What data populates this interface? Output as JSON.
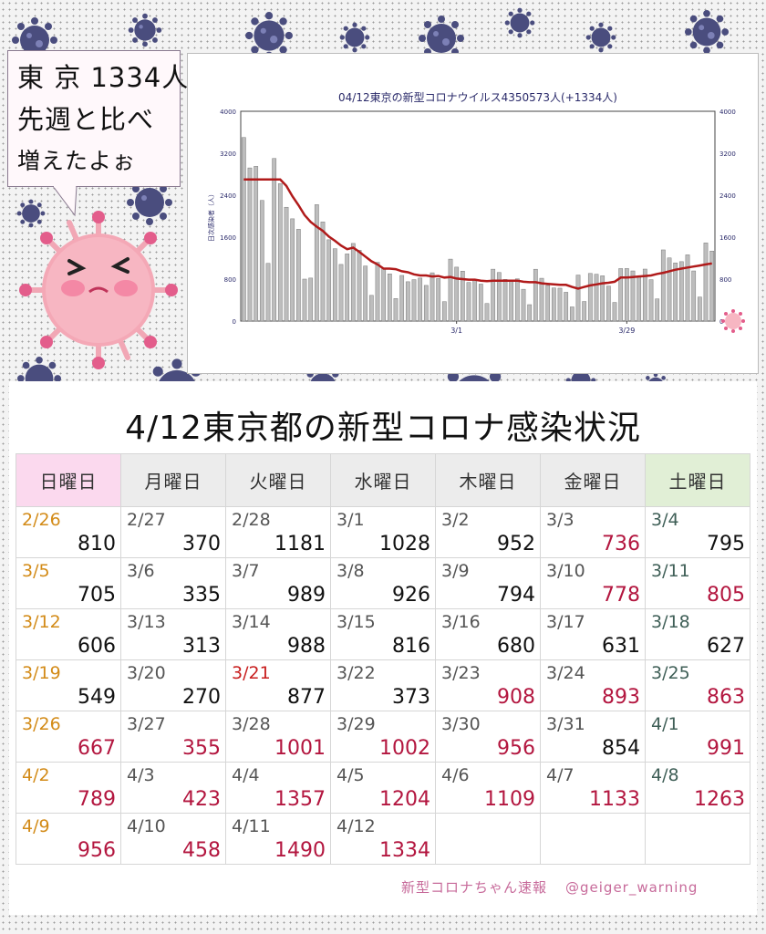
{
  "bubble": {
    "line1": "東 京 1334人",
    "line2": "先週と比べ",
    "line3": "増えたよぉ"
  },
  "table": {
    "title": "4/12東京都の新型コロナ感染状況",
    "headers": [
      "日曜日",
      "月曜日",
      "火曜日",
      "水曜日",
      "木曜日",
      "金曜日",
      "土曜日"
    ],
    "rows": [
      [
        {
          "date": "2/26",
          "value": "810",
          "red": false
        },
        {
          "date": "2/27",
          "value": "370",
          "red": false
        },
        {
          "date": "2/28",
          "value": "1181",
          "red": false
        },
        {
          "date": "3/1",
          "value": "1028",
          "red": false
        },
        {
          "date": "3/2",
          "value": "952",
          "red": false
        },
        {
          "date": "3/3",
          "value": "736",
          "red": true
        },
        {
          "date": "3/4",
          "value": "795",
          "red": false
        }
      ],
      [
        {
          "date": "3/5",
          "value": "705",
          "red": false
        },
        {
          "date": "3/6",
          "value": "335",
          "red": false
        },
        {
          "date": "3/7",
          "value": "989",
          "red": false
        },
        {
          "date": "3/8",
          "value": "926",
          "red": false
        },
        {
          "date": "3/9",
          "value": "794",
          "red": false
        },
        {
          "date": "3/10",
          "value": "778",
          "red": true
        },
        {
          "date": "3/11",
          "value": "805",
          "red": true
        }
      ],
      [
        {
          "date": "3/12",
          "value": "606",
          "red": false
        },
        {
          "date": "3/13",
          "value": "313",
          "red": false
        },
        {
          "date": "3/14",
          "value": "988",
          "red": false
        },
        {
          "date": "3/15",
          "value": "816",
          "red": false
        },
        {
          "date": "3/16",
          "value": "680",
          "red": false
        },
        {
          "date": "3/17",
          "value": "631",
          "red": false
        },
        {
          "date": "3/18",
          "value": "627",
          "red": false
        }
      ],
      [
        {
          "date": "3/19",
          "value": "549",
          "red": false
        },
        {
          "date": "3/20",
          "value": "270",
          "red": false
        },
        {
          "date": "3/21",
          "value": "877",
          "red": false,
          "holiday": true
        },
        {
          "date": "3/22",
          "value": "373",
          "red": false
        },
        {
          "date": "3/23",
          "value": "908",
          "red": true
        },
        {
          "date": "3/24",
          "value": "893",
          "red": true
        },
        {
          "date": "3/25",
          "value": "863",
          "red": true
        }
      ],
      [
        {
          "date": "3/26",
          "value": "667",
          "red": true
        },
        {
          "date": "3/27",
          "value": "355",
          "red": true
        },
        {
          "date": "3/28",
          "value": "1001",
          "red": true
        },
        {
          "date": "3/29",
          "value": "1002",
          "red": true
        },
        {
          "date": "3/30",
          "value": "956",
          "red": true
        },
        {
          "date": "3/31",
          "value": "854",
          "red": false
        },
        {
          "date": "4/1",
          "value": "991",
          "red": true
        }
      ],
      [
        {
          "date": "4/2",
          "value": "789",
          "red": true
        },
        {
          "date": "4/3",
          "value": "423",
          "red": true
        },
        {
          "date": "4/4",
          "value": "1357",
          "red": true
        },
        {
          "date": "4/5",
          "value": "1204",
          "red": true
        },
        {
          "date": "4/6",
          "value": "1109",
          "red": true
        },
        {
          "date": "4/7",
          "value": "1133",
          "red": true
        },
        {
          "date": "4/8",
          "value": "1263",
          "red": true
        }
      ],
      [
        {
          "date": "4/9",
          "value": "956",
          "red": true
        },
        {
          "date": "4/10",
          "value": "458",
          "red": true
        },
        {
          "date": "4/11",
          "value": "1490",
          "red": true
        },
        {
          "date": "4/12",
          "value": "1334",
          "red": true
        },
        {
          "date": "",
          "value": "",
          "red": false
        },
        {
          "date": "",
          "value": "",
          "red": false
        },
        {
          "date": "",
          "value": "",
          "red": false
        }
      ]
    ]
  },
  "credit": {
    "name": "新型コロナちゃん速報",
    "handle": "@geiger_warning"
  },
  "colors": {
    "bar": "#bdbdbd",
    "line": "#b01a1a",
    "axis_text": "#2a2a6a",
    "virus_navy": "#4a4d7e",
    "virus_pink": "#f1a7b5",
    "red_value": "#b3163f"
  },
  "chart_data": {
    "type": "bar",
    "title": "04/12東京の新型コロナウイルス4350573人(+1334人)",
    "ylabel": "日次感染者（人）",
    "ylim": [
      0,
      4000
    ],
    "yticks": [
      0,
      800,
      1600,
      2400,
      3200,
      4000
    ],
    "xticks": [
      {
        "index": 35,
        "label": "3/1"
      },
      {
        "index": 63,
        "label": "3/29"
      }
    ],
    "grid": false,
    "legend": "none",
    "line_series": "7-day average",
    "x": [
      "1/25",
      "1/26",
      "1/27",
      "1/28",
      "1/29",
      "1/30",
      "1/31",
      "2/1",
      "2/2",
      "2/3",
      "2/4",
      "2/5",
      "2/6",
      "2/7",
      "2/8",
      "2/9",
      "2/10",
      "2/11",
      "2/12",
      "2/13",
      "2/14",
      "2/15",
      "2/16",
      "2/17",
      "2/18",
      "2/19",
      "2/20",
      "2/21",
      "2/22",
      "2/23",
      "2/24",
      "2/25",
      "2/26",
      "2/27",
      "2/28",
      "3/1",
      "3/2",
      "3/3",
      "3/4",
      "3/5",
      "3/6",
      "3/7",
      "3/8",
      "3/9",
      "3/10",
      "3/11",
      "3/12",
      "3/13",
      "3/14",
      "3/15",
      "3/16",
      "3/17",
      "3/18",
      "3/19",
      "3/20",
      "3/21",
      "3/22",
      "3/23",
      "3/24",
      "3/25",
      "3/26",
      "3/27",
      "3/28",
      "3/29",
      "3/30",
      "3/31",
      "4/1",
      "4/2",
      "4/3",
      "4/4",
      "4/5",
      "4/6",
      "4/7",
      "4/8",
      "4/9",
      "4/10",
      "4/11",
      "4/12"
    ],
    "values": [
      3500,
      2920,
      2950,
      2300,
      1100,
      3100,
      2620,
      2170,
      1950,
      1750,
      800,
      820,
      2220,
      1890,
      1550,
      1380,
      1080,
      1280,
      1480,
      1350,
      1050,
      490,
      1120,
      1000,
      900,
      430,
      870,
      750,
      790,
      820,
      680,
      920,
      810,
      370,
      1181,
      1028,
      952,
      736,
      795,
      705,
      335,
      989,
      926,
      794,
      778,
      805,
      606,
      313,
      988,
      816,
      680,
      631,
      627,
      549,
      270,
      877,
      373,
      908,
      893,
      863,
      667,
      355,
      1001,
      1002,
      956,
      854,
      991,
      789,
      423,
      1357,
      1204,
      1109,
      1133,
      1263,
      956,
      458,
      1490,
      1334
    ],
    "average": [
      2700,
      2700,
      2700,
      2700,
      2700,
      2700,
      2700,
      2580,
      2380,
      2210,
      2020,
      1890,
      1800,
      1720,
      1610,
      1530,
      1440,
      1370,
      1400,
      1320,
      1230,
      1140,
      1080,
      1000,
      1000,
      990,
      950,
      930,
      890,
      870,
      870,
      850,
      860,
      830,
      840,
      810,
      800,
      790,
      790,
      770,
      760,
      770,
      770,
      770,
      770,
      770,
      750,
      740,
      740,
      720,
      710,
      700,
      690,
      690,
      650,
      620,
      650,
      680,
      700,
      720,
      730,
      750,
      830,
      830,
      840,
      850,
      860,
      870,
      900,
      920,
      950,
      980,
      1000,
      1020,
      1040,
      1060,
      1080,
      1100
    ]
  }
}
